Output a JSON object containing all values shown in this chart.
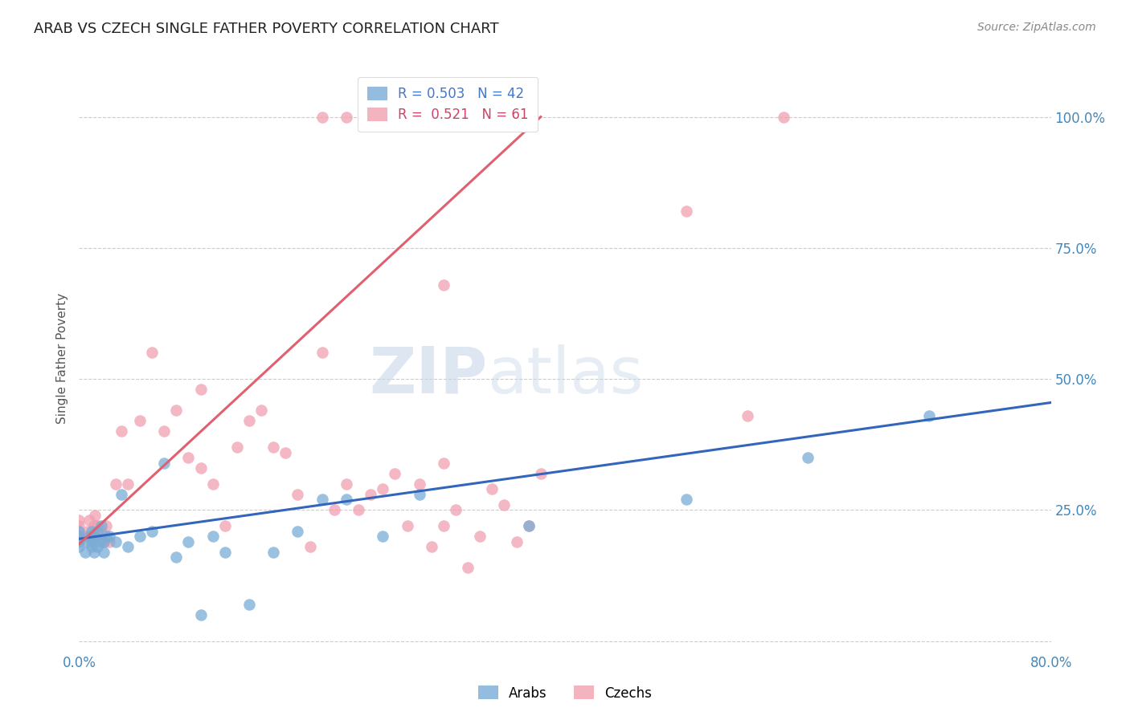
{
  "title": "ARAB VS CZECH SINGLE FATHER POVERTY CORRELATION CHART",
  "source": "Source: ZipAtlas.com",
  "ylabel": "Single Father Poverty",
  "xlim": [
    0.0,
    0.8
  ],
  "ylim": [
    -0.02,
    1.1
  ],
  "xticks": [
    0.0,
    0.2,
    0.4,
    0.6,
    0.8
  ],
  "xtick_labels": [
    "0.0%",
    "",
    "",
    "",
    "80.0%"
  ],
  "ytick_labels": [
    "",
    "25.0%",
    "50.0%",
    "75.0%",
    "100.0%"
  ],
  "yticks": [
    0.0,
    0.25,
    0.5,
    0.75,
    1.0
  ],
  "arab_color": "#7aacd6",
  "czech_color": "#f0a0b0",
  "arab_line_color": "#3366bb",
  "czech_line_color": "#e06070",
  "arab_R": "0.503",
  "arab_N": "42",
  "czech_R": "0.521",
  "czech_N": "61",
  "arab_scatter_x": [
    0.0,
    0.0,
    0.0,
    0.0,
    0.005,
    0.007,
    0.008,
    0.01,
    0.01,
    0.01,
    0.012,
    0.013,
    0.015,
    0.015,
    0.017,
    0.018,
    0.02,
    0.02,
    0.022,
    0.025,
    0.03,
    0.035,
    0.04,
    0.05,
    0.06,
    0.07,
    0.08,
    0.09,
    0.1,
    0.11,
    0.12,
    0.14,
    0.16,
    0.18,
    0.2,
    0.22,
    0.25,
    0.28,
    0.37,
    0.5,
    0.6,
    0.7
  ],
  "arab_scatter_y": [
    0.18,
    0.19,
    0.2,
    0.21,
    0.17,
    0.19,
    0.2,
    0.18,
    0.19,
    0.21,
    0.17,
    0.2,
    0.18,
    0.21,
    0.19,
    0.22,
    0.17,
    0.19,
    0.2,
    0.2,
    0.19,
    0.28,
    0.18,
    0.2,
    0.21,
    0.34,
    0.16,
    0.19,
    0.05,
    0.2,
    0.17,
    0.07,
    0.17,
    0.21,
    0.27,
    0.27,
    0.2,
    0.28,
    0.22,
    0.27,
    0.35,
    0.43
  ],
  "czech_scatter_x": [
    0.0,
    0.0,
    0.0,
    0.0,
    0.0,
    0.005,
    0.007,
    0.008,
    0.01,
    0.012,
    0.013,
    0.015,
    0.015,
    0.017,
    0.018,
    0.02,
    0.022,
    0.025,
    0.03,
    0.035,
    0.04,
    0.05,
    0.06,
    0.07,
    0.08,
    0.09,
    0.1,
    0.1,
    0.11,
    0.12,
    0.13,
    0.14,
    0.15,
    0.16,
    0.17,
    0.18,
    0.19,
    0.2,
    0.21,
    0.22,
    0.23,
    0.24,
    0.25,
    0.26,
    0.27,
    0.28,
    0.29,
    0.3,
    0.3,
    0.3,
    0.31,
    0.32,
    0.33,
    0.34,
    0.35,
    0.36,
    0.37,
    0.38,
    0.5,
    0.55,
    0.58
  ],
  "czech_scatter_y": [
    0.19,
    0.2,
    0.21,
    0.22,
    0.23,
    0.2,
    0.21,
    0.23,
    0.2,
    0.22,
    0.24,
    0.2,
    0.22,
    0.2,
    0.21,
    0.19,
    0.22,
    0.19,
    0.3,
    0.4,
    0.3,
    0.42,
    0.55,
    0.4,
    0.44,
    0.35,
    0.33,
    0.48,
    0.3,
    0.22,
    0.37,
    0.42,
    0.44,
    0.37,
    0.36,
    0.28,
    0.18,
    0.55,
    0.25,
    0.3,
    0.25,
    0.28,
    0.29,
    0.32,
    0.22,
    0.3,
    0.18,
    0.22,
    0.34,
    0.68,
    0.25,
    0.14,
    0.2,
    0.29,
    0.26,
    0.19,
    0.22,
    0.32,
    0.82,
    0.43,
    1.0
  ],
  "czech_top_x": [
    0.2,
    0.22,
    0.24,
    0.25,
    0.26,
    0.3
  ],
  "czech_top_y": [
    1.0,
    1.0,
    1.0,
    1.0,
    1.0,
    1.0
  ],
  "watermark_zip": "ZIP",
  "watermark_atlas": "atlas",
  "background_color": "#ffffff",
  "grid_color": "#cccccc"
}
